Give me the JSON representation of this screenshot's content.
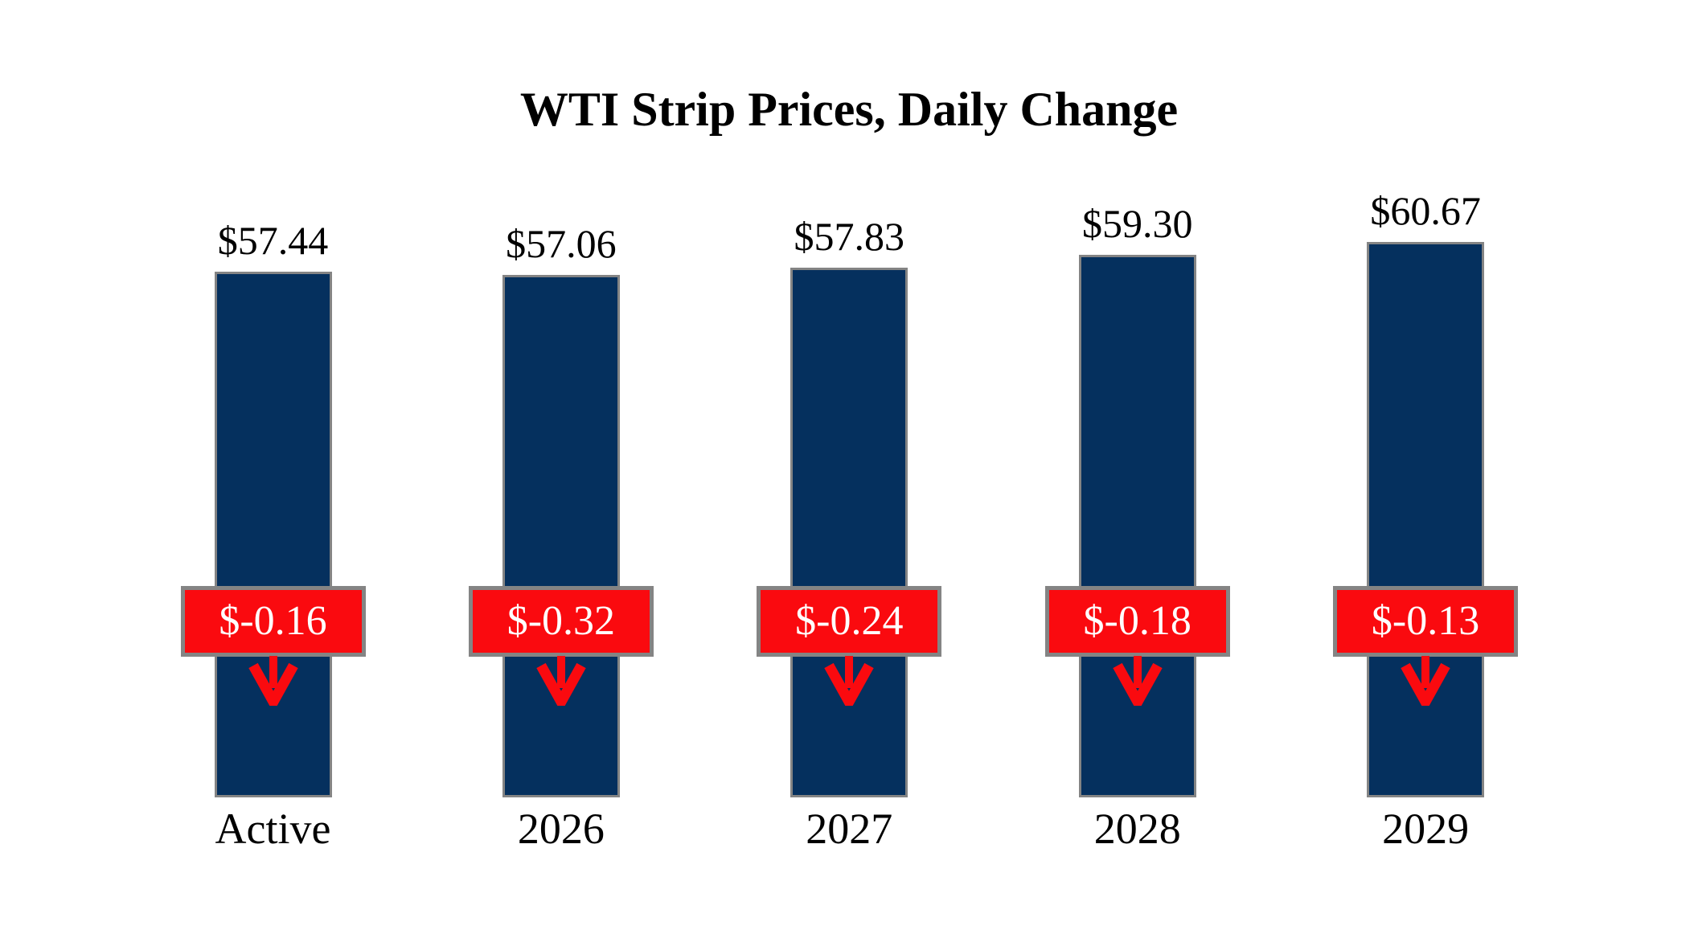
{
  "title": "WTI Strip Prices, Daily Change",
  "chart_data": {
    "type": "bar",
    "title": "WTI Strip Prices, Daily Change",
    "xlabel": "",
    "ylabel": "",
    "grid": false,
    "legend": false,
    "baseline": 0,
    "categories": [
      "Active",
      "2026",
      "2027",
      "2028",
      "2029"
    ],
    "values": [
      57.44,
      57.06,
      57.83,
      59.3,
      60.67
    ],
    "points": [
      {
        "category": "Active",
        "value": 57.44,
        "value_label": "$57.44",
        "change": -0.16,
        "change_label": "$-0.16",
        "change_direction": "down"
      },
      {
        "category": "2026",
        "value": 57.06,
        "value_label": "$57.06",
        "change": -0.32,
        "change_label": "$-0.32",
        "change_direction": "down"
      },
      {
        "category": "2027",
        "value": 57.83,
        "value_label": "$57.83",
        "change": -0.24,
        "change_label": "$-0.24",
        "change_direction": "down"
      },
      {
        "category": "2028",
        "value": 59.3,
        "value_label": "$59.30",
        "change": -0.18,
        "change_label": "$-0.18",
        "change_direction": "down"
      },
      {
        "category": "2029",
        "value": 60.67,
        "value_label": "$60.67",
        "change": -0.13,
        "change_label": "$-0.13",
        "change_direction": "down"
      }
    ],
    "colors": {
      "background": "#FFFFFF",
      "text": "#000000",
      "bar_fill": "#05305E",
      "bar_border": "#848484",
      "badge_fill": "#FA0A0F",
      "badge_border": "#848484",
      "badge_text": "#FFFFFF",
      "arrow": "#FA0A0F"
    }
  }
}
